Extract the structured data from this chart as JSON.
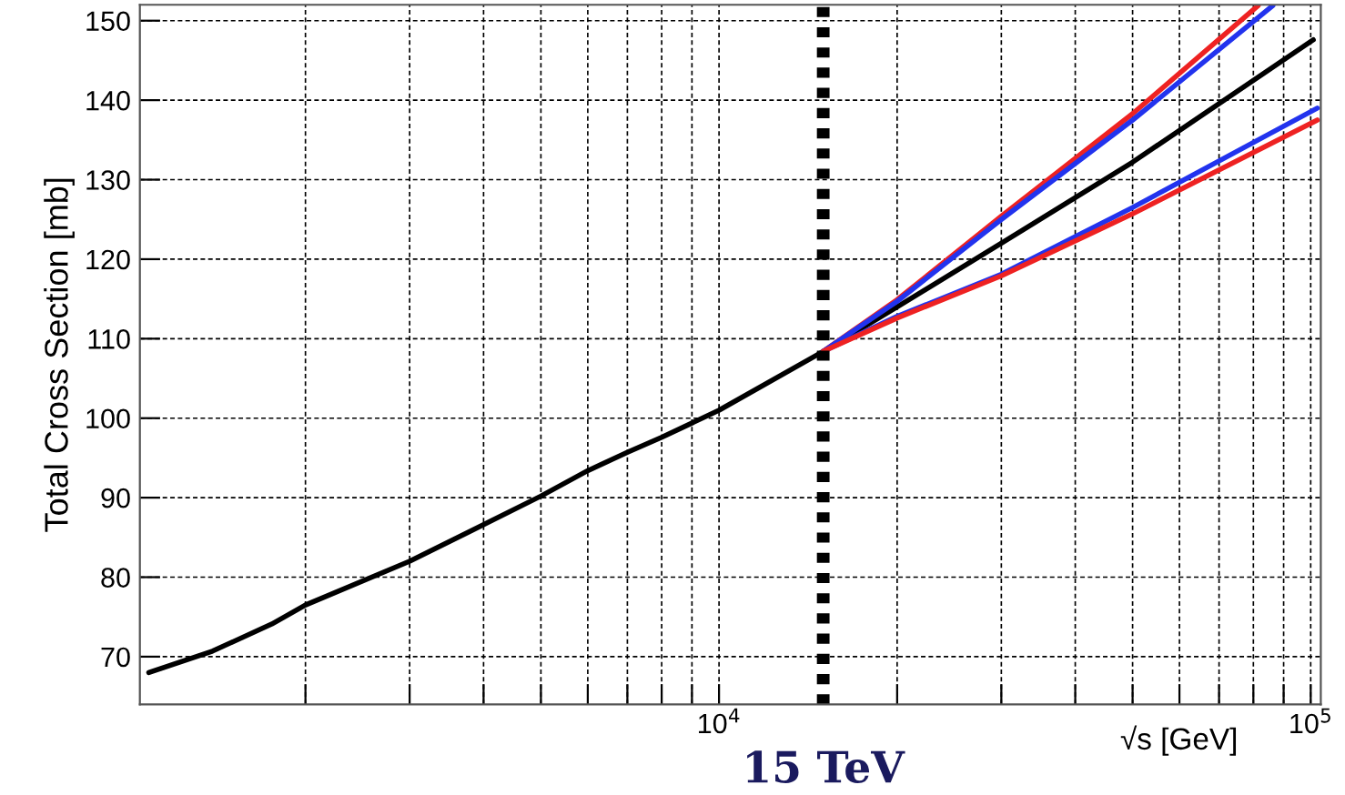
{
  "chart_data": {
    "type": "line",
    "xlabel": "√s [GeV]",
    "ylabel": "Total Cross Section [mb]",
    "log": "x",
    "xlim": [
      1050,
      104000
    ],
    "ylim": [
      64,
      152
    ],
    "xticks": [
      {
        "value": 2000,
        "label": null
      },
      {
        "value": 3000,
        "label": null
      },
      {
        "value": 4000,
        "label": null
      },
      {
        "value": 5000,
        "label": null
      },
      {
        "value": 6000,
        "label": null
      },
      {
        "value": 7000,
        "label": null
      },
      {
        "value": 8000,
        "label": null
      },
      {
        "value": 9000,
        "label": null
      },
      {
        "value": 10000,
        "label": "10$^{4}$"
      },
      {
        "value": 20000,
        "label": null
      },
      {
        "value": 30000,
        "label": null
      },
      {
        "value": 40000,
        "label": null
      },
      {
        "value": 50000,
        "label": null
      },
      {
        "value": 60000,
        "label": null
      },
      {
        "value": 70000,
        "label": null
      },
      {
        "value": 80000,
        "label": null
      },
      {
        "value": 90000,
        "label": null
      },
      {
        "value": 100000,
        "label": "10$^{5}$"
      }
    ],
    "yticks": [
      70,
      80,
      90,
      100,
      110,
      120,
      130,
      140,
      150
    ],
    "grid": true,
    "line_style": "solid",
    "marker": "none",
    "ref_lines": [
      {
        "axis": "x",
        "value": 15000,
        "label": "15 TeV",
        "color": "#000000",
        "line_style": "dotted"
      }
    ],
    "series": [
      {
        "color": "#000000",
        "x": [
          1087,
          1393,
          1754,
          2000,
          3000,
          4000,
          5000,
          6000,
          7000,
          8000,
          10000,
          15000,
          20000,
          30000,
          50000,
          101000
        ],
        "values": [
          68.0,
          70.7,
          74.1,
          76.5,
          82.0,
          86.6,
          90.2,
          93.4,
          95.7,
          97.6,
          101.0,
          108.4,
          114.0,
          122.0,
          132.2,
          147.6
        ]
      },
      {
        "color": "#ee2222",
        "x": [
          15000,
          20000,
          30000,
          50000,
          81500
        ],
        "values": [
          108.4,
          114.9,
          125.4,
          138.3,
          151.9
        ]
      },
      {
        "color": "#2233ee",
        "x": [
          15000,
          20000,
          30000,
          50000,
          86300
        ],
        "values": [
          108.4,
          114.7,
          125.0,
          137.5,
          151.9
        ]
      },
      {
        "color": "#2233ee",
        "x": [
          15000,
          20000,
          30000,
          50000,
          102600
        ],
        "values": [
          108.4,
          112.8,
          118.1,
          126.5,
          139.0
        ]
      },
      {
        "color": "#ee2222",
        "x": [
          15000,
          20000,
          30000,
          50000,
          102600
        ],
        "values": [
          108.4,
          112.6,
          117.9,
          125.7,
          137.5
        ]
      }
    ]
  }
}
